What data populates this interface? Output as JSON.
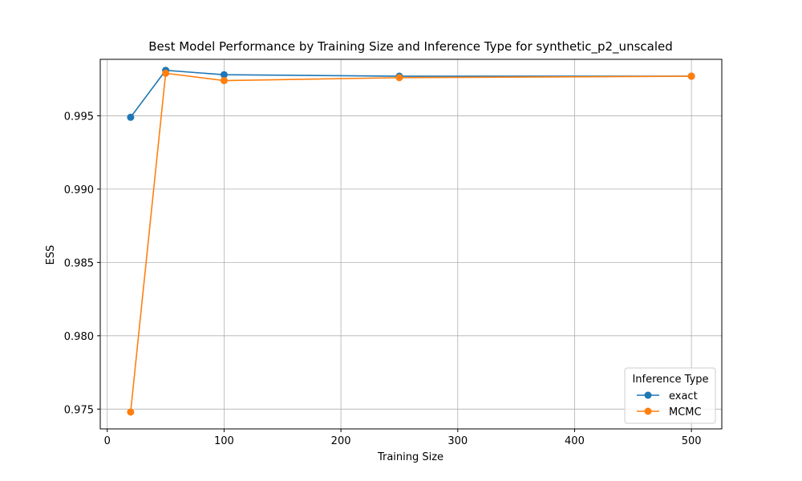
{
  "chart_data": {
    "type": "line",
    "title": "Best Model Performance by Training Size and Inference Type for synthetic_p2_unscaled",
    "xlabel": "Training Size",
    "ylabel": "ESS",
    "xlim": [
      -6,
      526
    ],
    "ylim": [
      0.97365,
      0.99885
    ],
    "xticks": [
      0,
      100,
      200,
      300,
      400,
      500
    ],
    "yticks": [
      0.975,
      0.98,
      0.985,
      0.99,
      0.995
    ],
    "ytick_labels": [
      "0.975",
      "0.980",
      "0.985",
      "0.990",
      "0.995"
    ],
    "grid": true,
    "legend": {
      "title": "Inference Type",
      "placement": "lower-right"
    },
    "series": [
      {
        "name": "exact",
        "color": "#1f77b4",
        "marker": "circle",
        "x": [
          20,
          50,
          100,
          250,
          500
        ],
        "y": [
          0.9949,
          0.9981,
          0.9978,
          0.9977,
          0.9977
        ]
      },
      {
        "name": "MCMC",
        "color": "#ff7f0e",
        "marker": "circle",
        "x": [
          20,
          50,
          100,
          250,
          500
        ],
        "y": [
          0.9748,
          0.9979,
          0.9974,
          0.9976,
          0.9977
        ]
      }
    ]
  }
}
